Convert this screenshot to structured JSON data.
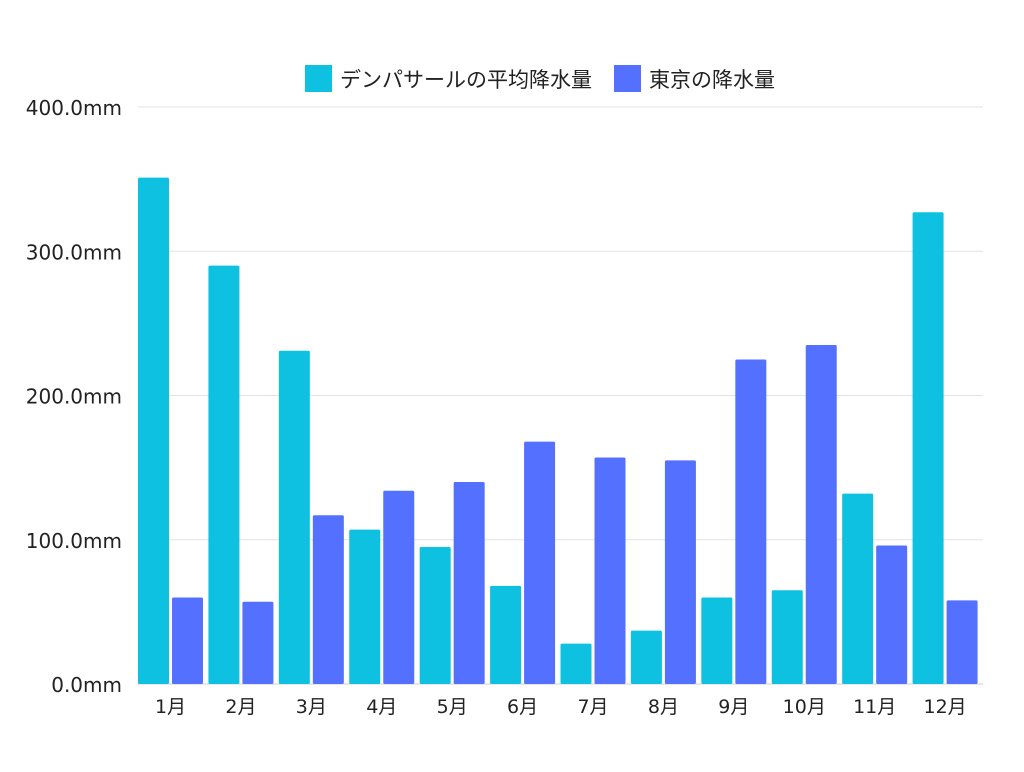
{
  "chart_data": {
    "type": "bar",
    "title": "",
    "xlabel": "",
    "ylabel": "",
    "categories": [
      "1月",
      "2月",
      "3月",
      "4月",
      "5月",
      "6月",
      "7月",
      "8月",
      "9月",
      "10月",
      "11月",
      "12月"
    ],
    "series": [
      {
        "name": "デンパサールの平均降水量",
        "color": "#0EC1E0",
        "values": [
          351,
          290,
          231,
          107,
          95,
          68,
          28,
          37,
          60,
          65,
          132,
          327
        ]
      },
      {
        "name": "東京の降水量",
        "color": "#5470FF",
        "values": [
          60,
          57,
          117,
          134,
          140,
          168,
          157,
          155,
          225,
          235,
          96,
          58
        ]
      }
    ],
    "ylim": [
      0,
      400
    ],
    "yticks": [
      "0.0mm",
      "100.0mm",
      "200.0mm",
      "300.0mm",
      "400.0mm"
    ],
    "grid": true,
    "legend": "top-center"
  }
}
